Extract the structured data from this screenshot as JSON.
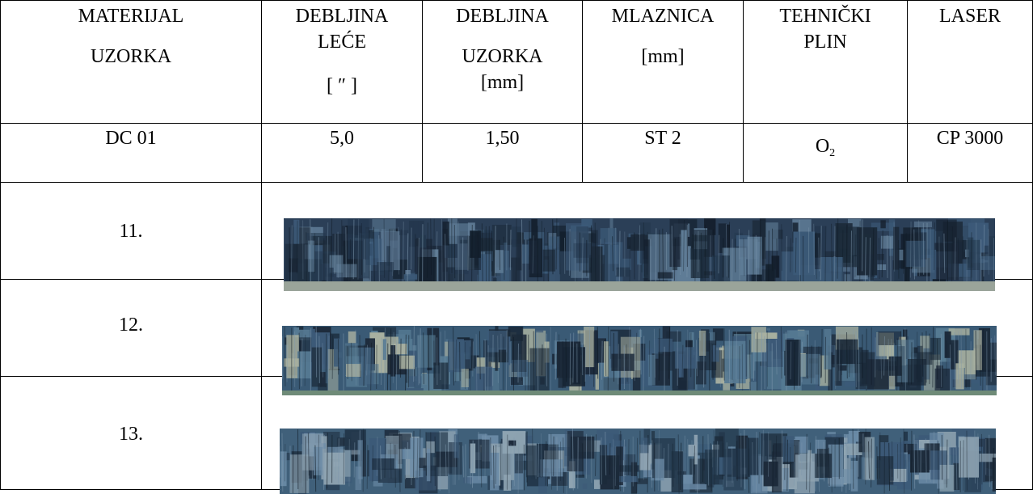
{
  "headers": {
    "material": [
      "MATERIJAL",
      "UZORKA"
    ],
    "lens_thickness": [
      "DEBLJINA",
      "LEĆE",
      "[ ″ ]"
    ],
    "sample_thickness": [
      "DEBLJINA",
      "UZORKA",
      "[mm]"
    ],
    "nozzle": [
      "MLAZNICA",
      "[mm]"
    ],
    "gas": [
      "TEHNIČKI",
      "PLIN"
    ],
    "laser": [
      "LASER"
    ]
  },
  "data_row": {
    "material": "DC 01",
    "lens_thickness": "5,0",
    "sample_thickness": "1,50",
    "nozzle": "ST 2",
    "gas_base": "O",
    "gas_subscript": "2",
    "laser": "CP 3000"
  },
  "samples": [
    {
      "label": "11."
    },
    {
      "label": "12."
    },
    {
      "label": "13."
    }
  ],
  "colors": {
    "border": "#000000",
    "strip_dark": "#1c2a3a",
    "strip_mid": "#3c5a78",
    "strip_light": "#a8b0a0"
  }
}
